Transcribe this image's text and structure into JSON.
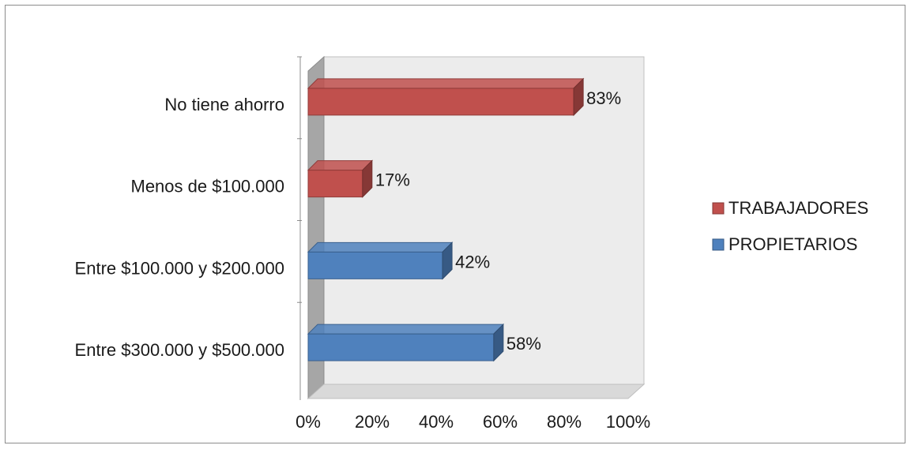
{
  "chart_data": {
    "type": "bar",
    "orientation": "horizontal",
    "style": "3d",
    "categories": [
      "No tiene ahorro",
      "Menos de $100.000",
      "Entre $100.000 y $200.000",
      "Entre $300.000 y $500.000"
    ],
    "series": [
      {
        "name": "TRABAJADORES",
        "color": "#c0504d",
        "values": [
          83,
          17,
          null,
          null
        ]
      },
      {
        "name": "PROPIETARIOS",
        "color": "#4f81bd",
        "values": [
          null,
          null,
          42,
          58
        ]
      }
    ],
    "data_labels": [
      "83%",
      "17%",
      "42%",
      "58%"
    ],
    "x_ticks": [
      "0%",
      "20%",
      "40%",
      "60%",
      "80%",
      "100%"
    ],
    "xlim": [
      0,
      100
    ],
    "legend_position": "right",
    "grid": false
  }
}
